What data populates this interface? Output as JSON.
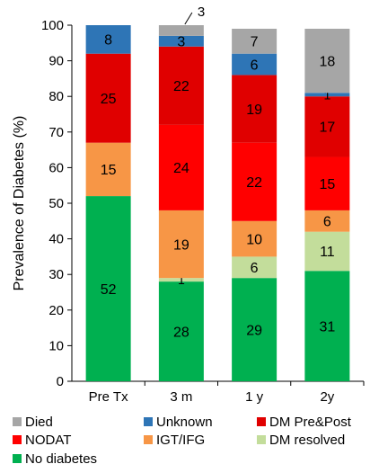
{
  "chart_data": {
    "type": "bar",
    "stacked": true,
    "ylabel": "Prevalence of Diabetes (%)",
    "xlabel": "",
    "title": "",
    "ylim": [
      0,
      100
    ],
    "yticks": [
      0,
      10,
      20,
      30,
      40,
      50,
      60,
      70,
      80,
      90,
      100
    ],
    "grid": false,
    "legend_position": "bottom",
    "categories": [
      "Pre Tx",
      "3 m",
      "1 y",
      "2y"
    ],
    "series": [
      {
        "name": "No diabetes",
        "color": "#00b050",
        "values": [
          52,
          28,
          29,
          31
        ]
      },
      {
        "name": "DM resolved",
        "color": "#c3dd9b",
        "values": [
          0,
          1,
          6,
          11
        ]
      },
      {
        "name": "IGT/IFG",
        "color": "#f79646",
        "values": [
          15,
          19,
          10,
          6
        ]
      },
      {
        "name": "NODAT",
        "color": "#ff0000",
        "values": [
          0,
          24,
          22,
          15
        ]
      },
      {
        "name": "DM Pre&Post",
        "color": "#e00000",
        "values": [
          25,
          22,
          19,
          17
        ]
      },
      {
        "name": "Unknown",
        "color": "#2e75b6",
        "values": [
          8,
          3,
          6,
          1
        ]
      },
      {
        "name": "Died",
        "color": "#a6a6a6",
        "values": [
          0,
          3,
          7,
          18
        ]
      }
    ],
    "legend": [
      {
        "name": "Died",
        "color": "#a6a6a6"
      },
      {
        "name": "Unknown",
        "color": "#2e75b6"
      },
      {
        "name": "DM Pre&Post",
        "color": "#e00000"
      },
      {
        "name": "NODAT",
        "color": "#ff0000"
      },
      {
        "name": "IGT/IFG",
        "color": "#f79646"
      },
      {
        "name": "DM resolved",
        "color": "#c3dd9b"
      },
      {
        "name": "No diabetes",
        "color": "#00b050"
      }
    ]
  }
}
